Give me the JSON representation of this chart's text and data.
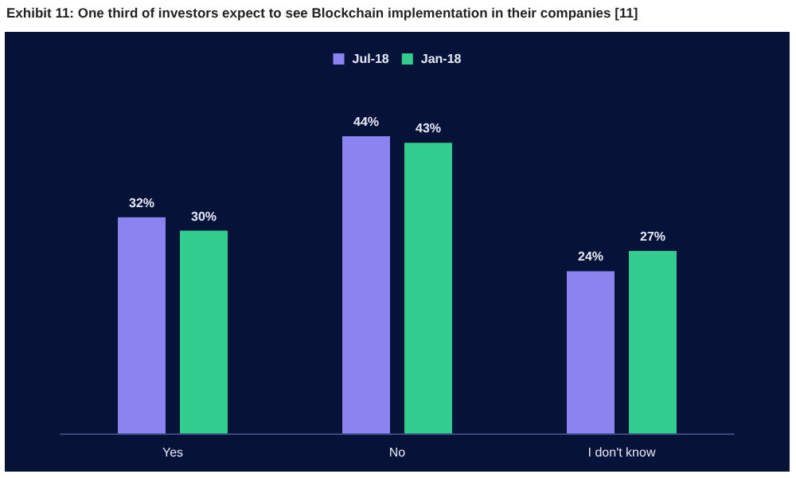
{
  "chart_data": {
    "type": "bar",
    "title": "Exhibit 11: One third of investors expect to see Blockchain implementation in their companies [11]",
    "categories": [
      "Yes",
      "No",
      "I don't know"
    ],
    "series": [
      {
        "name": "Jul-18",
        "color": "#8b84f0",
        "values": [
          32,
          44,
          24
        ],
        "value_labels": [
          "32%",
          "44%",
          "24%"
        ]
      },
      {
        "name": "Jan-18",
        "color": "#33cc8f",
        "values": [
          30,
          43,
          27
        ],
        "value_labels": [
          "30%",
          "43%",
          "27%"
        ]
      }
    ],
    "legend": "top"
  }
}
